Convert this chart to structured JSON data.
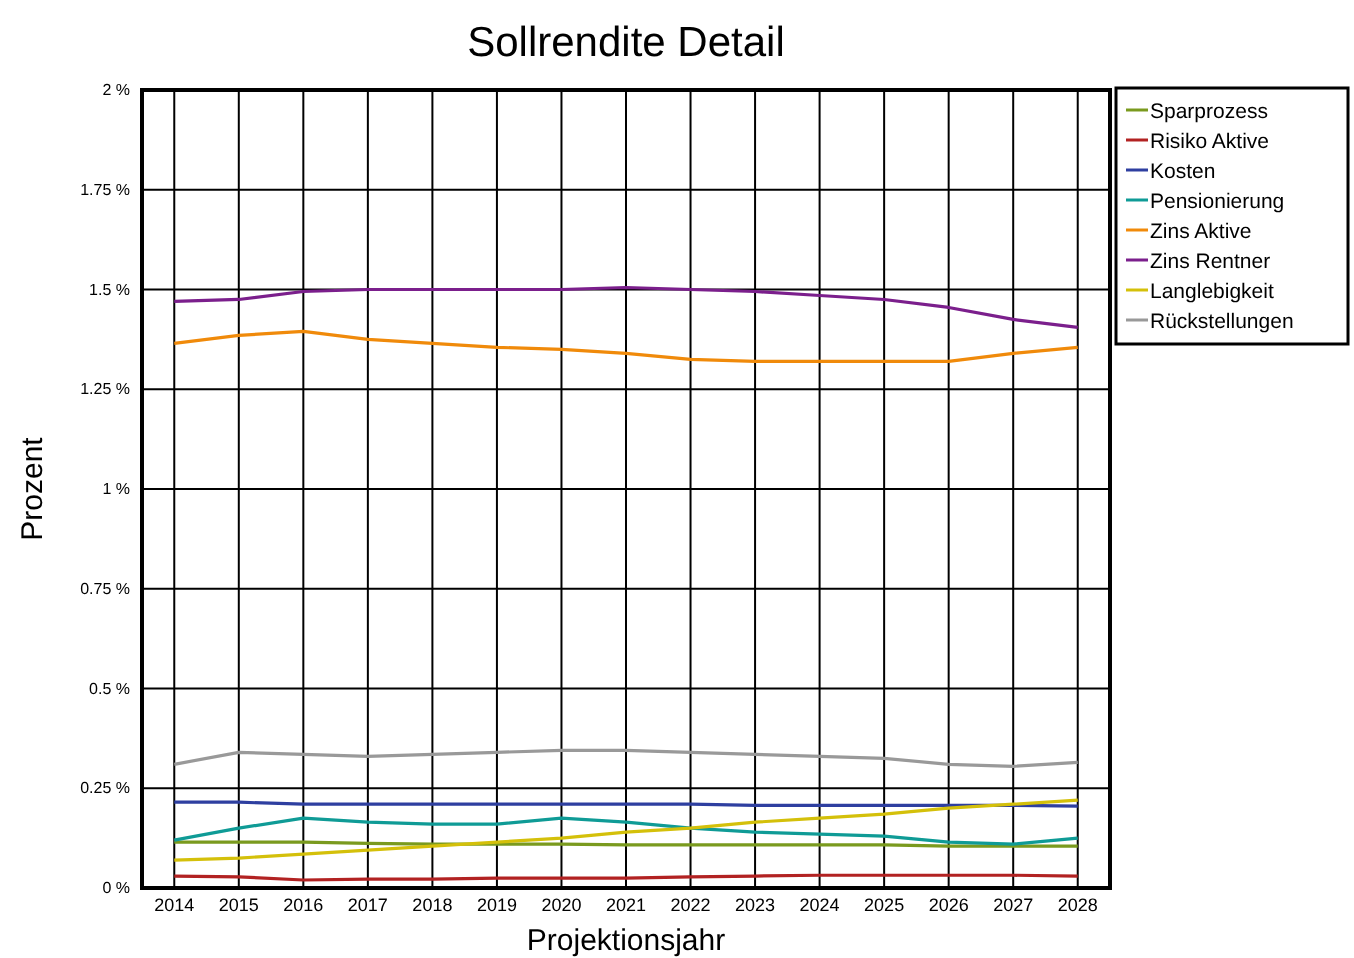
{
  "chart_data": {
    "type": "line",
    "title": "Sollrendite Detail",
    "xlabel": "Projektionsjahr",
    "ylabel": "Prozent",
    "x": [
      2014,
      2015,
      2016,
      2017,
      2018,
      2019,
      2020,
      2021,
      2022,
      2023,
      2024,
      2025,
      2026,
      2027,
      2028
    ],
    "xlim": [
      2013.5,
      2028.5
    ],
    "xticks": [
      2014,
      2015,
      2016,
      2017,
      2018,
      2019,
      2020,
      2021,
      2022,
      2023,
      2024,
      2025,
      2026,
      2027,
      2028
    ],
    "ylim": [
      0,
      2
    ],
    "yticks": [
      {
        "value": 0,
        "label": "0 %"
      },
      {
        "value": 0.25,
        "label": "0.25 %"
      },
      {
        "value": 0.5,
        "label": "0.5 %"
      },
      {
        "value": 0.75,
        "label": "0.75 %"
      },
      {
        "value": 1,
        "label": "1 %"
      },
      {
        "value": 1.25,
        "label": "1.25 %"
      },
      {
        "value": 1.5,
        "label": "1.5 %"
      },
      {
        "value": 1.75,
        "label": "1.75 %"
      },
      {
        "value": 2,
        "label": "2 %"
      }
    ],
    "grid": true,
    "legend": "top right",
    "marker": "none",
    "line_style": "solid",
    "series": [
      {
        "name": "Sparprozess",
        "color": "#7a9a1e",
        "values": [
          0.115,
          0.115,
          0.115,
          0.112,
          0.11,
          0.11,
          0.11,
          0.108,
          0.108,
          0.108,
          0.108,
          0.108,
          0.105,
          0.105,
          0.105
        ]
      },
      {
        "name": "Risiko Aktive",
        "color": "#b22222",
        "values": [
          0.03,
          0.028,
          0.02,
          0.022,
          0.022,
          0.025,
          0.025,
          0.025,
          0.028,
          0.03,
          0.032,
          0.032,
          0.032,
          0.032,
          0.03
        ]
      },
      {
        "name": "Kosten",
        "color": "#2e3fa0",
        "values": [
          0.215,
          0.215,
          0.21,
          0.21,
          0.21,
          0.21,
          0.21,
          0.21,
          0.21,
          0.207,
          0.207,
          0.207,
          0.207,
          0.207,
          0.205
        ]
      },
      {
        "name": "Pensionierung",
        "color": "#0f9b96",
        "values": [
          0.12,
          0.15,
          0.175,
          0.165,
          0.16,
          0.16,
          0.175,
          0.165,
          0.15,
          0.14,
          0.135,
          0.13,
          0.115,
          0.11,
          0.125
        ]
      },
      {
        "name": "Zins Aktive",
        "color": "#f08a0a",
        "values": [
          1.365,
          1.385,
          1.395,
          1.375,
          1.365,
          1.355,
          1.35,
          1.34,
          1.325,
          1.32,
          1.32,
          1.32,
          1.32,
          1.34,
          1.355
        ]
      },
      {
        "name": "Zins Rentner",
        "color": "#7b1f8c",
        "values": [
          1.47,
          1.475,
          1.495,
          1.5,
          1.5,
          1.5,
          1.5,
          1.505,
          1.5,
          1.495,
          1.485,
          1.475,
          1.455,
          1.425,
          1.405
        ]
      },
      {
        "name": "Langlebigkeit",
        "color": "#d4c00a",
        "values": [
          0.07,
          0.075,
          0.085,
          0.095,
          0.105,
          0.115,
          0.125,
          0.14,
          0.15,
          0.165,
          0.175,
          0.185,
          0.2,
          0.21,
          0.22
        ]
      },
      {
        "name": "Rückstellungen",
        "color": "#999999",
        "values": [
          0.31,
          0.34,
          0.335,
          0.33,
          0.335,
          0.34,
          0.345,
          0.345,
          0.34,
          0.335,
          0.33,
          0.325,
          0.31,
          0.305,
          0.315
        ]
      }
    ]
  }
}
